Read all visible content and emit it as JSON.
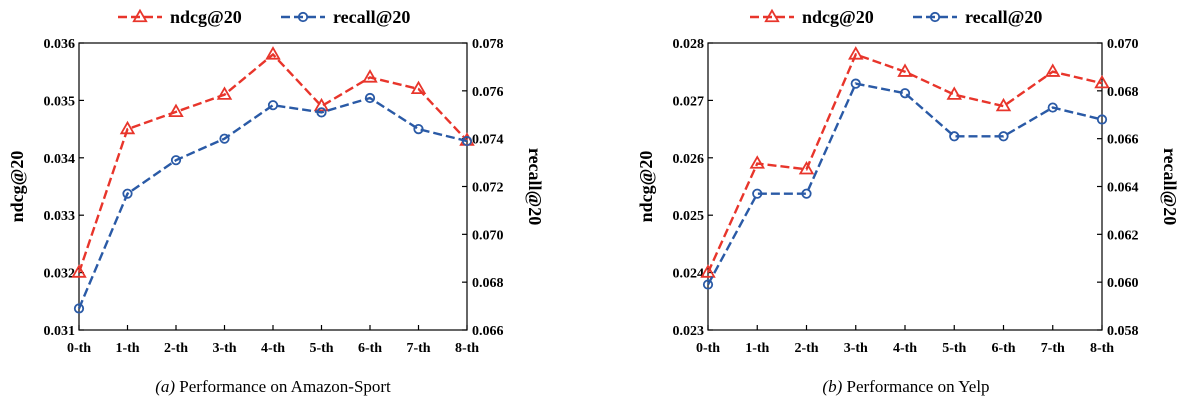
{
  "chart_data": [
    {
      "type": "line",
      "caption_prefix": "(a)",
      "caption_text": " Performance on Amazon-Sport",
      "categories": [
        "0-th",
        "1-th",
        "2-th",
        "3-th",
        "4-th",
        "5-th",
        "6-th",
        "7-th",
        "8-th"
      ],
      "ylabel": "ndcg@20",
      "y2label": "recall@20",
      "ylim": [
        0.031,
        0.036
      ],
      "yticks": [
        "0.031",
        "0.032",
        "0.033",
        "0.034",
        "0.035",
        "0.036"
      ],
      "y2lim": [
        0.066,
        0.078
      ],
      "y2ticks": [
        "0.066",
        "0.068",
        "0.070",
        "0.072",
        "0.074",
        "0.076",
        "0.078"
      ],
      "legend_position": "top-center",
      "series": [
        {
          "name": "ndcg@20",
          "axis": "left",
          "color": "#e8352b",
          "marker": "triangle",
          "values": [
            0.032,
            0.0345,
            0.0348,
            0.0351,
            0.0358,
            0.0349,
            0.0354,
            0.0352,
            0.0343
          ]
        },
        {
          "name": "recall@20",
          "axis": "right",
          "color": "#2a5aa6",
          "marker": "circle",
          "values": [
            0.0669,
            0.0717,
            0.0731,
            0.074,
            0.0754,
            0.0751,
            0.0757,
            0.0744,
            0.0739
          ]
        }
      ]
    },
    {
      "type": "line",
      "caption_prefix": "(b)",
      "caption_text": " Performance on Yelp",
      "categories": [
        "0-th",
        "1-th",
        "2-th",
        "3-th",
        "4-th",
        "5-th",
        "6-th",
        "7-th",
        "8-th"
      ],
      "ylabel": "ndcg@20",
      "y2label": "recall@20",
      "ylim": [
        0.023,
        0.028
      ],
      "yticks": [
        "0.023",
        "0.024",
        "0.025",
        "0.026",
        "0.027",
        "0.028"
      ],
      "y2lim": [
        0.058,
        0.07
      ],
      "y2ticks": [
        "0.058",
        "0.060",
        "0.062",
        "0.064",
        "0.066",
        "0.068",
        "0.070"
      ],
      "legend_position": "top-center",
      "series": [
        {
          "name": "ndcg@20",
          "axis": "left",
          "color": "#e8352b",
          "marker": "triangle",
          "values": [
            0.024,
            0.0259,
            0.0258,
            0.0278,
            0.0275,
            0.0271,
            0.0269,
            0.0275,
            0.0273
          ]
        },
        {
          "name": "recall@20",
          "axis": "right",
          "color": "#2a5aa6",
          "marker": "circle",
          "values": [
            0.0599,
            0.0637,
            0.0637,
            0.0683,
            0.0679,
            0.0661,
            0.0661,
            0.0673,
            0.0668
          ]
        }
      ]
    }
  ]
}
